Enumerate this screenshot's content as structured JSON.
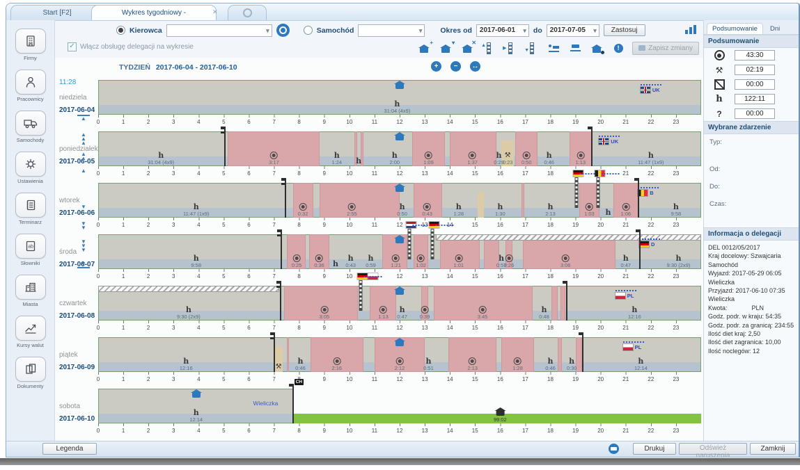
{
  "window": {
    "tabs": [
      {
        "label": "Start [F2]",
        "active": false
      },
      {
        "label": "Wykres tygodniowy -",
        "active": true
      }
    ]
  },
  "toolbar": {
    "kierowca_label": "Kierowca",
    "samochod_label": "Samochód",
    "okres_od_label": "Okres od",
    "do_label": "do",
    "date_from": "2017-06-01",
    "date_to": "2017-07-05",
    "zastosuj_label": "Zastosuj",
    "delegation_checkbox_label": "Włącz obsługę delegacji na wykresie",
    "delegation_checked": true,
    "zapisz_zmiany_label": "Zapisz zmiany",
    "icons": [
      "home-add-icon",
      "home-pin-icon",
      "home-remove-icon",
      "border-start-icon",
      "border-middle-icon",
      "border-end-icon",
      "hotel-icon",
      "ferry-icon",
      "home-event-icon",
      "info-icon"
    ]
  },
  "sidebar": {
    "items": [
      {
        "label": "Firmy",
        "icon": "building-icon"
      },
      {
        "label": "Pracownicy",
        "icon": "person-icon"
      },
      {
        "label": "Samochody",
        "icon": "truck-icon"
      },
      {
        "label": "Ustawienia",
        "icon": "gear-icon"
      },
      {
        "label": "Terminarz",
        "icon": "calendar-icon"
      },
      {
        "label": "Słowniki",
        "icon": "dictionary-icon"
      },
      {
        "label": "Miasta",
        "icon": "city-icon"
      },
      {
        "label": "Kursy walut",
        "icon": "chart-icon"
      },
      {
        "label": "Dokumenty",
        "icon": "documents-icon"
      }
    ]
  },
  "chart": {
    "week_prefix": "TYDZIEŃ",
    "week_range": "2017-06-04 - 2017-06-10",
    "current_time": "11:28",
    "hour_start": 0,
    "hour_end": 23,
    "zoom_icons": [
      "zoom-in-icon",
      "zoom-out-icon",
      "zoom-fit-icon"
    ],
    "nav": [
      "nav-top",
      "nav-up-fast",
      "nav-up-double",
      "nav-up",
      "nav-down",
      "nav-down-double",
      "nav-down-fast",
      "nav-bottom"
    ],
    "days": [
      {
        "name": "niedziela",
        "date": "2017-06-04",
        "events": [
          {
            "t": "home",
            "h": 12
          },
          {
            "t": "rest",
            "h": 11.9,
            "label": "31:04 (4x9)"
          },
          {
            "t": "flagline",
            "h": 22,
            "flag": "UK",
            "label": "UK"
          }
        ]
      },
      {
        "name": "poniedziałek",
        "date": "2017-06-05",
        "events": [
          {
            "t": "rest",
            "h": 2.5,
            "label": "31:04 (4x9)"
          },
          {
            "t": "marker",
            "h": 5.05,
            "kind": "start"
          },
          {
            "t": "drive_block",
            "from": 5.15,
            "to": 8.8
          },
          {
            "t": "drive",
            "h": 7.0,
            "label": "3:17"
          },
          {
            "t": "rest",
            "h": 9.5,
            "label": "1:24"
          },
          {
            "t": "drive_block",
            "from": 10.2,
            "to": 10.3
          },
          {
            "t": "drive_block",
            "from": 10.45,
            "to": 10.55
          },
          {
            "t": "rest",
            "h": 10.37,
            "label": ""
          },
          {
            "t": "rest",
            "h": 11.8,
            "label": "2:00"
          },
          {
            "t": "home",
            "h": 12
          },
          {
            "t": "drive_block",
            "from": 12.5,
            "to": 13.8
          },
          {
            "t": "drive",
            "h": 13.15,
            "label": "1:09"
          },
          {
            "t": "drive_block",
            "from": 14.0,
            "to": 15.85
          },
          {
            "t": "drive",
            "h": 14.9,
            "label": "1:37"
          },
          {
            "t": "rest",
            "h": 15.95,
            "label": "0:29"
          },
          {
            "t": "work_block",
            "from": 16.05,
            "to": 16.55
          },
          {
            "t": "work",
            "h": 16.3,
            "label": "0:23"
          },
          {
            "t": "drive_block",
            "from": 16.6,
            "to": 17.5
          },
          {
            "t": "drive",
            "h": 17.05,
            "label": "0:50"
          },
          {
            "t": "rest",
            "h": 17.95,
            "label": "0:46"
          },
          {
            "t": "drive_block",
            "from": 18.75,
            "to": 19.65
          },
          {
            "t": "drive",
            "h": 19.2,
            "label": "1:13"
          },
          {
            "t": "marker",
            "h": 19.65,
            "kind": "end"
          },
          {
            "t": "flagline",
            "h": 20.35,
            "flag": "UK",
            "label": "UK"
          },
          {
            "t": "rest",
            "h": 22.0,
            "label": "11:47 (1x9)"
          }
        ]
      },
      {
        "name": "wtorek",
        "date": "2017-06-06",
        "events": [
          {
            "t": "rest",
            "h": 3.9,
            "label": "11:47 (1x9)"
          },
          {
            "t": "marker",
            "h": 7.45,
            "kind": "start"
          },
          {
            "t": "drive_block",
            "from": 7.75,
            "to": 8.55
          },
          {
            "t": "drive",
            "h": 8.15,
            "label": "0:32"
          },
          {
            "t": "drive_block",
            "from": 8.8,
            "to": 12.0
          },
          {
            "t": "drive",
            "h": 10.1,
            "label": "2:55"
          },
          {
            "t": "home",
            "h": 12
          },
          {
            "t": "rest",
            "h": 12.1,
            "label": "0:50"
          },
          {
            "t": "drive_block",
            "from": 12.55,
            "to": 13.7
          },
          {
            "t": "drive",
            "h": 13.1,
            "label": "0:43"
          },
          {
            "t": "rest",
            "h": 14.35,
            "label": "1:28"
          },
          {
            "t": "work_block",
            "from": 15.1,
            "to": 15.35
          },
          {
            "t": "rest",
            "h": 16.0,
            "label": "1:30"
          },
          {
            "t": "drive_block",
            "from": 16.85,
            "to": 16.95
          },
          {
            "t": "rest",
            "h": 18.0,
            "label": "2:13"
          },
          {
            "t": "border",
            "h": 19.05,
            "flags": [
              "D"
            ]
          },
          {
            "t": "drive_block",
            "from": 19.15,
            "to": 19.95
          },
          {
            "t": "drive",
            "h": 19.55,
            "label": "1:03"
          },
          {
            "t": "border",
            "h": 19.9,
            "flags": [
              "B"
            ]
          },
          {
            "t": "rest",
            "h": 20.3,
            "label": ""
          },
          {
            "t": "drive_block",
            "from": 20.5,
            "to": 21.5
          },
          {
            "t": "drive",
            "h": 21.0,
            "label": "1:06"
          },
          {
            "t": "marker",
            "h": 21.5,
            "kind": "end"
          },
          {
            "t": "flagline",
            "h": 21.9,
            "flag": "B",
            "label": "B"
          },
          {
            "t": "rest",
            "h": 23.0,
            "label": "9:58"
          }
        ]
      },
      {
        "name": "środa",
        "date": "2017-06-07",
        "events": [
          {
            "t": "rest",
            "h": 3.9,
            "label": "9:58"
          },
          {
            "t": "marker",
            "h": 7.3,
            "kind": "start"
          },
          {
            "t": "drive_block",
            "from": 7.5,
            "to": 8.25
          },
          {
            "t": "drive",
            "h": 7.9,
            "label": "0:25"
          },
          {
            "t": "drive_block",
            "from": 8.4,
            "to": 9.2
          },
          {
            "t": "drive",
            "h": 8.8,
            "label": "0:36"
          },
          {
            "t": "rest",
            "h": 9.45,
            "label": ""
          },
          {
            "t": "rest",
            "h": 10.05,
            "label": "0:43"
          },
          {
            "t": "rest",
            "h": 10.85,
            "label": "0:59"
          },
          {
            "t": "drive_block",
            "from": 11.3,
            "to": 12.3
          },
          {
            "t": "drive",
            "h": 11.85,
            "label": "1:21"
          },
          {
            "t": "home",
            "h": 12
          },
          {
            "t": "border",
            "h": 12.4,
            "flags": [
              "NL"
            ]
          },
          {
            "t": "drive_block",
            "from": 12.55,
            "to": 13.15
          },
          {
            "t": "drive",
            "h": 12.85,
            "label": "1:02"
          },
          {
            "t": "border",
            "h": 13.3,
            "flags": [
              "D"
            ]
          },
          {
            "t": "hatch",
            "from": 13.45,
            "to": 24
          },
          {
            "t": "drive_block",
            "from": 13.6,
            "to": 15.2
          },
          {
            "t": "drive",
            "h": 14.35,
            "label": "1:01"
          },
          {
            "t": "drive_block",
            "from": 15.35,
            "to": 15.95
          },
          {
            "t": "rest",
            "h": 16.05,
            "label": "0:57"
          },
          {
            "t": "drive_block",
            "from": 16.2,
            "to": 16.5
          },
          {
            "t": "drive",
            "h": 16.35,
            "label": "0:26"
          },
          {
            "t": "drive_block",
            "from": 16.9,
            "to": 20.6
          },
          {
            "t": "drive",
            "h": 18.6,
            "label": "3:06"
          },
          {
            "t": "rest",
            "h": 21.0,
            "label": "0:47"
          },
          {
            "t": "marker",
            "h": 21.55,
            "kind": "end"
          },
          {
            "t": "flagline",
            "h": 21.95,
            "flag": "D",
            "label": "D"
          },
          {
            "t": "rest",
            "h": 23.1,
            "label": "9:30 (2x9)"
          }
        ]
      },
      {
        "name": "czwartek",
        "date": "2017-06-08",
        "events": [
          {
            "t": "hatch",
            "from": 0,
            "to": 7.2
          },
          {
            "t": "rest",
            "h": 3.6,
            "label": "9:30 (2x9)"
          },
          {
            "t": "marker",
            "h": 7.25,
            "kind": "start"
          },
          {
            "t": "drive_block",
            "from": 7.4,
            "to": 10.35
          },
          {
            "t": "drive",
            "h": 9.0,
            "label": "3:05"
          },
          {
            "t": "border",
            "h": 10.45,
            "flags": [
              "D",
              "PL"
            ]
          },
          {
            "t": "drive_block",
            "from": 10.8,
            "to": 11.85
          },
          {
            "t": "drive",
            "h": 11.35,
            "label": "1:13"
          },
          {
            "t": "home",
            "h": 12
          },
          {
            "t": "rest",
            "h": 12.1,
            "label": "0:47"
          },
          {
            "t": "drive_block",
            "from": 12.85,
            "to": 13.15
          },
          {
            "t": "drive",
            "h": 13.0,
            "label": "0:39"
          },
          {
            "t": "drive_block",
            "from": 13.35,
            "to": 17.3
          },
          {
            "t": "drive",
            "h": 15.3,
            "label": "3:45"
          },
          {
            "t": "rest",
            "h": 17.75,
            "label": "0:48"
          },
          {
            "t": "drive_block",
            "from": 18.05,
            "to": 18.3
          },
          {
            "t": "drive_block",
            "from": 18.4,
            "to": 18.6
          },
          {
            "t": "marker",
            "h": 18.65,
            "kind": "end"
          },
          {
            "t": "flagline",
            "h": 21.0,
            "flag": "PL",
            "label": "PL"
          },
          {
            "t": "rest",
            "h": 21.35,
            "label": "12:16"
          }
        ]
      },
      {
        "name": "piątek",
        "date": "2017-06-09",
        "events": [
          {
            "t": "rest",
            "h": 3.5,
            "label": "12:16"
          },
          {
            "t": "marker",
            "h": 7.0,
            "kind": "start"
          },
          {
            "t": "work_block",
            "from": 7.0,
            "to": 7.35
          },
          {
            "t": "work",
            "h": 7.18,
            "label": ""
          },
          {
            "t": "drive_block",
            "from": 7.5,
            "to": 7.6
          },
          {
            "t": "rest",
            "h": 8.05,
            "label": "0:46"
          },
          {
            "t": "drive_block",
            "from": 8.45,
            "to": 10.55
          },
          {
            "t": "drive",
            "h": 9.5,
            "label": "2:16"
          },
          {
            "t": "drive_block",
            "from": 11.0,
            "to": 13.0
          },
          {
            "t": "drive",
            "h": 12.0,
            "label": "2:12"
          },
          {
            "t": "home",
            "h": 12
          },
          {
            "t": "rest",
            "h": 13.15,
            "label": "0:51"
          },
          {
            "t": "drive_block",
            "from": 13.95,
            "to": 15.85
          },
          {
            "t": "drive",
            "h": 14.9,
            "label": "2:13"
          },
          {
            "t": "drive_block",
            "from": 16.05,
            "to": 17.35
          },
          {
            "t": "drive",
            "h": 16.7,
            "label": "1:28"
          },
          {
            "t": "rest",
            "h": 18.0,
            "label": "0:46"
          },
          {
            "t": "drive_block",
            "from": 18.3,
            "to": 18.45
          },
          {
            "t": "rest",
            "h": 18.85,
            "label": "0:30"
          },
          {
            "t": "drive_block",
            "from": 19.0,
            "to": 19.25
          },
          {
            "t": "marker",
            "h": 19.3,
            "kind": "end"
          },
          {
            "t": "flagline",
            "h": 21.3,
            "flag": "PL",
            "label": "PL"
          },
          {
            "t": "rest",
            "h": 21.6,
            "label": "12:14"
          }
        ]
      },
      {
        "name": "sobota",
        "date": "2017-06-10",
        "band_to": 7.75,
        "events": [
          {
            "t": "home",
            "h": 3.9
          },
          {
            "t": "rest",
            "h": 3.9,
            "label": "12:14"
          },
          {
            "t": "text",
            "h": 7.2,
            "label": "Wieliczka"
          },
          {
            "t": "marker",
            "h": 7.75,
            "kind": "end",
            "badge": "CH"
          },
          {
            "t": "green",
            "from": 7.75,
            "to": 24
          },
          {
            "t": "home_dark",
            "h": 16.0,
            "label": "99:02"
          }
        ]
      }
    ]
  },
  "summary_panel": {
    "tabs": [
      {
        "label": "Podsumowanie",
        "active": true
      },
      {
        "label": "Dni",
        "active": false
      }
    ],
    "summary_header": "Podsumowanie",
    "rows": [
      {
        "icon": "drive-icon",
        "value": "43:30"
      },
      {
        "icon": "work-icon",
        "value": "02:19"
      },
      {
        "icon": "availability-icon",
        "value": "00:00"
      },
      {
        "icon": "rest-icon",
        "value": "122:11"
      },
      {
        "icon": "unknown-icon",
        "value": "00:00"
      }
    ],
    "event_header": "Wybrane zdarzenie",
    "event_fields": [
      "Typ:",
      "Od:",
      "Do:",
      "Czas:"
    ],
    "delegation_header": "Informacja o delegacji",
    "delegation_lines": [
      "DEL 0012/05/2017",
      "Kraj docelowy: Szwajcaria",
      "Samochód",
      "Wyjazd: 2017-05-29 06:05",
      "Wieliczka",
      "Przyjazd: 2017-06-10 07:35",
      "Wieliczka",
      "Kwota:              PLN",
      "Godz. podr. w kraju: 54:35",
      "Godz. podr. za granicą: 234:55",
      "Ilość diet kraj: 2,50",
      "Ilość diet zagranica: 10,00",
      "Ilość noclegów: 12"
    ]
  },
  "footer": {
    "legenda_label": "Legenda",
    "drukuj_label": "Drukuj",
    "odswiez_label": "Odśwież naruszenia",
    "zamknij_label": "Zamknij"
  },
  "colors": {
    "accent_blue": "#2e78bc",
    "drive_pink": "#d9a6a9",
    "work_beige": "#dbcba6",
    "delegation_green": "#82c342",
    "navy": "#1f4e79"
  }
}
